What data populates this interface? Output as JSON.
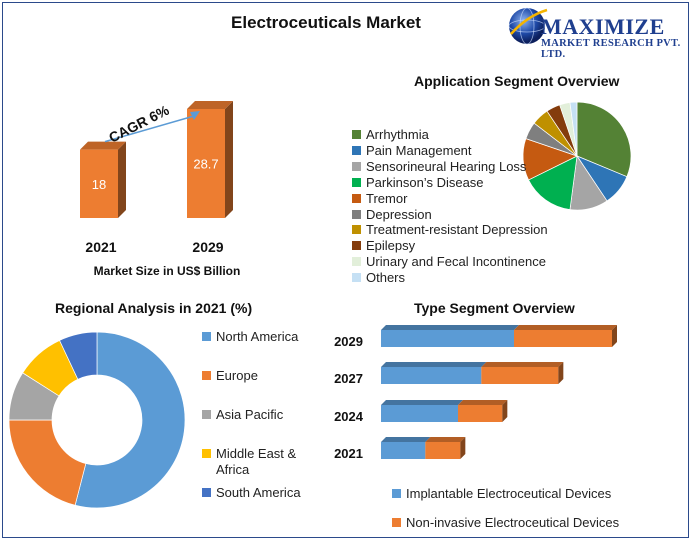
{
  "title": "Electroceuticals Market",
  "logo": {
    "name": "MAXIMIZE",
    "tagline": "MARKET RESEARCH PVT. LTD."
  },
  "chart_data": [
    {
      "type": "bar",
      "title": "Market Size in US$ Billion",
      "categories": [
        "2021",
        "2029"
      ],
      "values": [
        18,
        28.7
      ],
      "value_labels": [
        "18",
        "28.7"
      ],
      "annotation": "CAGR 6%",
      "color": "#ed7d31"
    },
    {
      "type": "pie",
      "title": "Application Segment Overview",
      "labels": [
        "Arrhythmia",
        "Pain Management",
        "Sensorineural Hearing Loss",
        "Parkinson’s Disease",
        "Tremor",
        "Depression",
        "Treatment-resistant Depression",
        "Epilepsy",
        "Urinary and Fecal Incontinence",
        "Others"
      ],
      "values": [
        30,
        9,
        11,
        15,
        12,
        5,
        5,
        4,
        3,
        2
      ],
      "colors": [
        "#548235",
        "#2e75b6",
        "#a5a5a5",
        "#00b050",
        "#c55a11",
        "#7f7f7f",
        "#bf9000",
        "#843c0c",
        "#e2efda",
        "#c5e0f4"
      ]
    },
    {
      "type": "pie",
      "subtype": "donut",
      "title": "Regional Analysis in 2021 (%)",
      "labels": [
        "North America",
        "Europe",
        "Asia Pacific",
        "Middle East & Africa",
        "South America"
      ],
      "values": [
        54,
        21,
        9,
        9,
        7
      ],
      "colors": [
        "#5b9bd5",
        "#ed7d31",
        "#a5a5a5",
        "#ffc000",
        "#4472c4"
      ]
    },
    {
      "type": "bar",
      "orientation": "horizontal",
      "stacked": true,
      "title": "Type Segment Overview",
      "categories": [
        "2029",
        "2027",
        "2024",
        "2021"
      ],
      "series": [
        {
          "name": "Implantable Electroceutical Devices",
          "values": [
            57,
            43,
            33,
            19
          ],
          "color": "#5b9bd5"
        },
        {
          "name": "Non-invasive Electroceutical Devices",
          "values": [
            42,
            33,
            19,
            15
          ],
          "color": "#ed7d31"
        }
      ]
    }
  ]
}
